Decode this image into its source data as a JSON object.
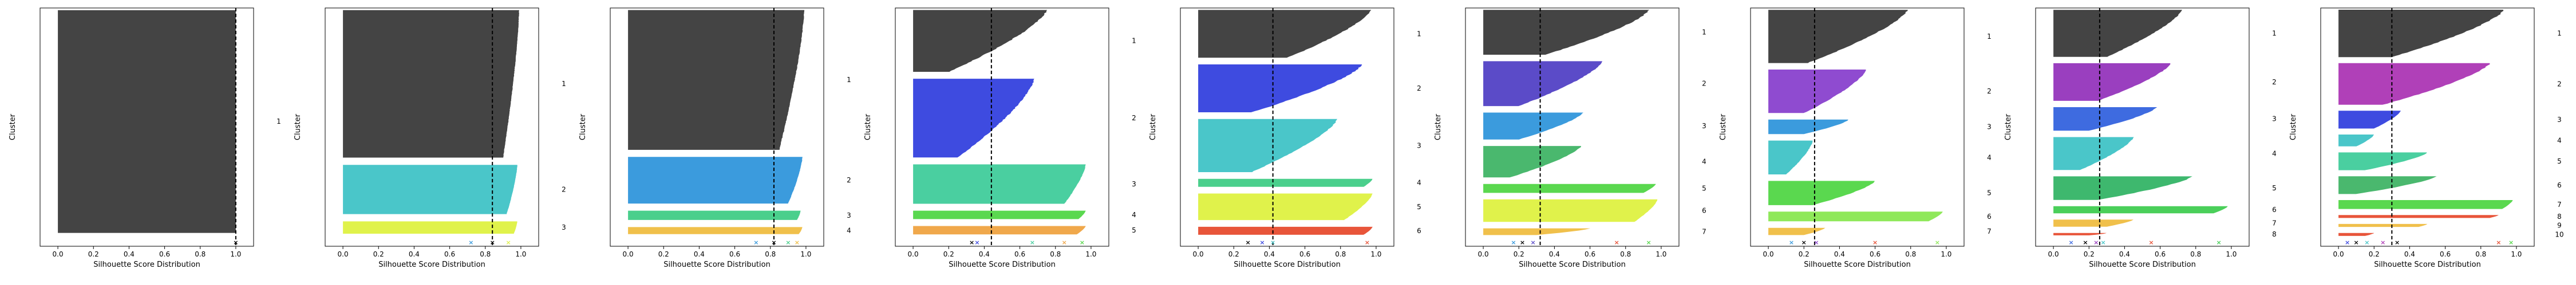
{
  "figure": {
    "colors": {
      "axis": "#000000",
      "silhouette_fill": "#444444",
      "avg_line": "#000000"
    },
    "palette": [
      "#444444",
      "#3B9BDD",
      "#4AC6C9",
      "#3E4BE0",
      "#E0F24B",
      "#4ACF8C",
      "#8F4BD0",
      "#F0C04B",
      "#E8553A",
      "#5AD84F"
    ]
  },
  "chart_data": [
    {
      "type": "silhouette",
      "xlabel": "Silhouette Score Distribution",
      "ylabel": "Cluster",
      "xticks": [
        "0.0",
        "0.2",
        "0.4",
        "0.6",
        "0.8",
        "1.0"
      ],
      "xlim": [
        -0.1,
        1.1
      ],
      "avg_score": 1.0,
      "clusters": [
        {
          "label": "1",
          "size": 100,
          "max": 1.0,
          "min": 1.0,
          "color": "#444444"
        }
      ],
      "centers": [
        {
          "value": 1.0,
          "marker": "x",
          "color": "#000000"
        }
      ]
    },
    {
      "type": "silhouette",
      "xlabel": "Silhouette Score Distribution",
      "ylabel": "Cluster",
      "xticks": [
        "0.0",
        "0.2",
        "0.4",
        "0.6",
        "0.8",
        "1.0"
      ],
      "xlim": [
        -0.1,
        1.1
      ],
      "avg_score": 0.84,
      "clusters": [
        {
          "label": "1",
          "size": 60,
          "max": 0.99,
          "min": 0.9,
          "color": "#444444"
        },
        {
          "label": "2",
          "size": 20,
          "max": 0.98,
          "min": 0.92,
          "color": "#4AC6C9"
        },
        {
          "label": "3",
          "size": 5,
          "max": 0.98,
          "min": 0.96,
          "color": "#E0F24B"
        }
      ],
      "centers": [
        {
          "value": 0.72,
          "marker": "x",
          "color": "#3B9BDD"
        },
        {
          "value": 0.84,
          "marker": "x",
          "color": "#000000"
        },
        {
          "value": 0.93,
          "marker": "x",
          "color": "#E0F24B"
        }
      ]
    },
    {
      "type": "silhouette",
      "xlabel": "Silhouette Score Distribution",
      "ylabel": "Cluster",
      "xticks": [
        "0.0",
        "0.2",
        "0.4",
        "0.6",
        "0.8",
        "1.0"
      ],
      "xlim": [
        -0.1,
        1.1
      ],
      "avg_score": 0.82,
      "clusters": [
        {
          "label": "1",
          "size": 60,
          "max": 0.99,
          "min": 0.85,
          "color": "#444444"
        },
        {
          "label": "2",
          "size": 20,
          "max": 0.98,
          "min": 0.9,
          "color": "#3B9BDD"
        },
        {
          "label": "3",
          "size": 4,
          "max": 0.97,
          "min": 0.95,
          "color": "#4ACF8C"
        },
        {
          "label": "4",
          "size": 3,
          "max": 0.98,
          "min": 0.96,
          "color": "#F0C04B"
        }
      ],
      "centers": [
        {
          "value": 0.72,
          "marker": "x",
          "color": "#3B9BDD"
        },
        {
          "value": 0.82,
          "marker": "x",
          "color": "#000000"
        },
        {
          "value": 0.9,
          "marker": "x",
          "color": "#4ACF8C"
        },
        {
          "value": 0.95,
          "marker": "x",
          "color": "#F0C04B"
        }
      ]
    },
    {
      "type": "silhouette",
      "xlabel": "Silhouette Score Distribution",
      "ylabel": "Cluster",
      "xticks": [
        "0.0",
        "0.2",
        "0.4",
        "0.6",
        "0.8",
        "1.0"
      ],
      "xlim": [
        -0.1,
        1.1
      ],
      "avg_score": 0.44,
      "clusters": [
        {
          "label": "1",
          "size": 22,
          "max": 0.75,
          "min": 0.2,
          "color": "#444444"
        },
        {
          "label": "2",
          "size": 28,
          "max": 0.68,
          "min": 0.25,
          "color": "#3E4BE0"
        },
        {
          "label": "3",
          "size": 14,
          "max": 0.97,
          "min": 0.85,
          "color": "#4ACFA0"
        },
        {
          "label": "4",
          "size": 3,
          "max": 0.97,
          "min": 0.93,
          "color": "#5AD84F"
        },
        {
          "label": "5",
          "size": 3,
          "max": 0.97,
          "min": 0.92,
          "color": "#F0A84B"
        }
      ],
      "centers": [
        {
          "value": 0.33,
          "marker": "x",
          "color": "#000000"
        },
        {
          "value": 0.36,
          "marker": "x",
          "color": "#3E4BE0"
        },
        {
          "value": 0.67,
          "marker": "x",
          "color": "#4ACFA0"
        },
        {
          "value": 0.85,
          "marker": "x",
          "color": "#F0A84B"
        },
        {
          "value": 0.95,
          "marker": "x",
          "color": "#5AD84F"
        }
      ]
    },
    {
      "type": "silhouette",
      "xlabel": "Silhouette Score Distribution",
      "ylabel": "Cluster",
      "xticks": [
        "0.0",
        "0.2",
        "0.4",
        "0.6",
        "0.8",
        "1.0"
      ],
      "xlim": [
        -0.1,
        1.1
      ],
      "avg_score": 0.42,
      "clusters": [
        {
          "label": "1",
          "size": 18,
          "max": 0.97,
          "min": 0.5,
          "color": "#444444"
        },
        {
          "label": "2",
          "size": 18,
          "max": 0.92,
          "min": 0.3,
          "color": "#3E4BE0"
        },
        {
          "label": "3",
          "size": 20,
          "max": 0.78,
          "min": 0.3,
          "color": "#4AC6C9"
        },
        {
          "label": "4",
          "size": 3,
          "max": 0.98,
          "min": 0.93,
          "color": "#4ACF8C"
        },
        {
          "label": "5",
          "size": 10,
          "max": 0.98,
          "min": 0.82,
          "color": "#E0F24B"
        },
        {
          "label": "6",
          "size": 3,
          "max": 0.98,
          "min": 0.93,
          "color": "#E8553A"
        }
      ],
      "centers": [
        {
          "value": 0.28,
          "marker": "x",
          "color": "#000000"
        },
        {
          "value": 0.36,
          "marker": "x",
          "color": "#3E4BE0"
        },
        {
          "value": 0.42,
          "marker": "x",
          "color": "#4AC6C9"
        },
        {
          "value": 0.95,
          "marker": "x",
          "color": "#E8553A"
        }
      ]
    },
    {
      "type": "silhouette",
      "xlabel": "Silhouette Score Distribution",
      "ylabel": "Cluster",
      "xticks": [
        "0.0",
        "0.2",
        "0.4",
        "0.6",
        "0.8",
        "1.0"
      ],
      "xlim": [
        -0.1,
        1.1
      ],
      "avg_score": 0.32,
      "clusters": [
        {
          "label": "1",
          "size": 20,
          "max": 0.93,
          "min": 0.35,
          "color": "#444444"
        },
        {
          "label": "2",
          "size": 20,
          "max": 0.67,
          "min": 0.2,
          "color": "#5B4BC8"
        },
        {
          "label": "3",
          "size": 12,
          "max": 0.56,
          "min": 0.2,
          "color": "#3B9BDD"
        },
        {
          "label": "4",
          "size": 14,
          "max": 0.55,
          "min": 0.15,
          "color": "#4AB86E"
        },
        {
          "label": "5",
          "size": 4,
          "max": 0.97,
          "min": 0.9,
          "color": "#5AD84F"
        },
        {
          "label": "6",
          "size": 10,
          "max": 0.98,
          "min": 0.85,
          "color": "#E0F24B"
        },
        {
          "label": "7",
          "size": 3,
          "max": 0.6,
          "min": 0.3,
          "color": "#F0C04B"
        }
      ],
      "centers": [
        {
          "value": 0.17,
          "marker": "x",
          "color": "#3B9BDD"
        },
        {
          "value": 0.22,
          "marker": "x",
          "color": "#000000"
        },
        {
          "value": 0.28,
          "marker": "x",
          "color": "#5B4BC8"
        },
        {
          "value": 0.75,
          "marker": "x",
          "color": "#E8553A"
        },
        {
          "value": 0.93,
          "marker": "x",
          "color": "#5AD84F"
        }
      ]
    },
    {
      "type": "silhouette",
      "xlabel": "Silhouette Score Distribution",
      "ylabel": "Cluster",
      "xticks": [
        "0.0",
        "0.2",
        "0.4",
        "0.6",
        "0.8",
        "1.0"
      ],
      "xlim": [
        -0.1,
        1.1
      ],
      "avg_score": 0.26,
      "clusters": [
        {
          "label": "1",
          "size": 22,
          "max": 0.78,
          "min": 0.22,
          "color": "#444444"
        },
        {
          "label": "2",
          "size": 18,
          "max": 0.55,
          "min": 0.2,
          "color": "#8F4BD0"
        },
        {
          "label": "3",
          "size": 6,
          "max": 0.45,
          "min": 0.2,
          "color": "#3B9BDD"
        },
        {
          "label": "4",
          "size": 14,
          "max": 0.25,
          "min": 0.1,
          "color": "#4AC6C9"
        },
        {
          "label": "5",
          "size": 10,
          "max": 0.6,
          "min": 0.25,
          "color": "#5AD84F"
        },
        {
          "label": "6",
          "size": 4,
          "max": 0.98,
          "min": 0.9,
          "color": "#8FE85A"
        },
        {
          "label": "7",
          "size": 3,
          "max": 0.32,
          "min": 0.2,
          "color": "#F0C04B"
        }
      ],
      "centers": [
        {
          "value": 0.13,
          "marker": "x",
          "color": "#3B9BDD"
        },
        {
          "value": 0.2,
          "marker": "x",
          "color": "#000000"
        },
        {
          "value": 0.27,
          "marker": "x",
          "color": "#8F4BD0"
        },
        {
          "value": 0.6,
          "marker": "x",
          "color": "#E8553A"
        },
        {
          "value": 0.95,
          "marker": "x",
          "color": "#8FE85A"
        }
      ]
    },
    {
      "type": "silhouette",
      "xlabel": "Silhouette Score Distribution",
      "ylabel": "Cluster",
      "xticks": [
        "0.0",
        "0.2",
        "0.4",
        "0.6",
        "0.8",
        "1.0"
      ],
      "xlim": [
        -0.1,
        1.1
      ],
      "avg_score": 0.26,
      "clusters": [
        {
          "label": "1",
          "size": 20,
          "max": 0.72,
          "min": 0.3,
          "color": "#444444"
        },
        {
          "label": "2",
          "size": 16,
          "max": 0.66,
          "min": 0.25,
          "color": "#9A3FBF"
        },
        {
          "label": "3",
          "size": 10,
          "max": 0.58,
          "min": 0.2,
          "color": "#3E6BE0"
        },
        {
          "label": "4",
          "size": 14,
          "max": 0.45,
          "min": 0.15,
          "color": "#4AC6C9"
        },
        {
          "label": "5",
          "size": 10,
          "max": 0.78,
          "min": 0.25,
          "color": "#3EB86E"
        },
        {
          "label": "6",
          "size": 3,
          "max": 0.98,
          "min": 0.9,
          "color": "#4ACF5A"
        },
        {
          "label": "7",
          "size": 3,
          "max": 0.45,
          "min": 0.3,
          "color": "#F0C04B"
        },
        {
          "label": "8",
          "size": 1,
          "max": 0.3,
          "min": 0.2,
          "color": "#E8553A"
        }
      ],
      "centers": [
        {
          "value": 0.1,
          "marker": "x",
          "color": "#3E6BE0"
        },
        {
          "value": 0.18,
          "marker": "x",
          "color": "#000000"
        },
        {
          "value": 0.24,
          "marker": "x",
          "color": "#9A3FBF"
        },
        {
          "value": 0.28,
          "marker": "x",
          "color": "#4AC6C9"
        },
        {
          "value": 0.55,
          "marker": "x",
          "color": "#E8553A"
        },
        {
          "value": 0.93,
          "marker": "x",
          "color": "#4ACF5A"
        }
      ]
    },
    {
      "type": "silhouette",
      "xlabel": "Silhouette Score Distribution",
      "ylabel": "Cluster",
      "xticks": [
        "0.0",
        "0.2",
        "0.4",
        "0.6",
        "0.8",
        "1.0"
      ],
      "xlim": [
        -0.1,
        1.1
      ],
      "avg_score": 0.3,
      "clusters": [
        {
          "label": "1",
          "size": 16,
          "max": 0.93,
          "min": 0.3,
          "color": "#444444"
        },
        {
          "label": "2",
          "size": 14,
          "max": 0.85,
          "min": 0.25,
          "color": "#B040B8"
        },
        {
          "label": "3",
          "size": 6,
          "max": 0.35,
          "min": 0.2,
          "color": "#3E4BE0"
        },
        {
          "label": "4",
          "size": 4,
          "max": 0.2,
          "min": 0.1,
          "color": "#4AC6C9"
        },
        {
          "label": "5",
          "size": 6,
          "max": 0.5,
          "min": 0.15,
          "color": "#4ACFA0"
        },
        {
          "label": "6",
          "size": 6,
          "max": 0.55,
          "min": 0.1,
          "color": "#4AB86E"
        },
        {
          "label": "7",
          "size": 3,
          "max": 0.98,
          "min": 0.92,
          "color": "#5AD84F"
        },
        {
          "label": "8",
          "size": 1,
          "max": 0.9,
          "min": 0.85,
          "color": "#E8553A"
        },
        {
          "label": "9",
          "size": 1,
          "max": 0.5,
          "min": 0.45,
          "color": "#F0C04B"
        },
        {
          "label": "10",
          "size": 1,
          "max": 0.2,
          "min": 0.15,
          "color": "#E8553A"
        }
      ],
      "centers": [
        {
          "value": 0.05,
          "marker": "x",
          "color": "#3E4BE0"
        },
        {
          "value": 0.1,
          "marker": "x",
          "color": "#000000"
        },
        {
          "value": 0.16,
          "marker": "x",
          "color": "#4AC6C9"
        },
        {
          "value": 0.25,
          "marker": "x",
          "color": "#B040B8"
        },
        {
          "value": 0.33,
          "marker": "x",
          "color": "#000000"
        },
        {
          "value": 0.9,
          "marker": "x",
          "color": "#E8553A"
        },
        {
          "value": 0.97,
          "marker": "x",
          "color": "#5AD84F"
        }
      ]
    }
  ]
}
